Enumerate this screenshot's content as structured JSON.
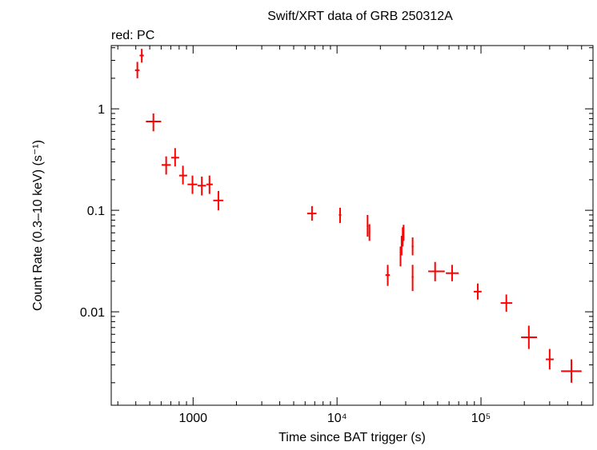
{
  "chart_data": {
    "type": "scatter",
    "title": "Swift/XRT data of GRB 250312A",
    "subtitle": "red: PC",
    "xlabel": "Time since BAT trigger (s)",
    "ylabel": "Count Rate (0.3–10 keV) (s⁻¹)",
    "xscale": "log",
    "yscale": "log",
    "xlim": [
      270,
      600000
    ],
    "ylim": [
      0.0012,
      4.2
    ],
    "x_ticks": [
      {
        "value": 1000,
        "label": "1000"
      },
      {
        "value": 10000,
        "label": "10⁴"
      },
      {
        "value": 100000,
        "label": "10⁵"
      }
    ],
    "y_ticks": [
      {
        "value": 1,
        "label": "1"
      },
      {
        "value": 0.1,
        "label": "0.1"
      },
      {
        "value": 0.01,
        "label": "0.01"
      }
    ],
    "grid": false,
    "series_color": "#ff0000",
    "points": [
      {
        "x": 410,
        "xlo": 395,
        "xhi": 425,
        "y": 2.4,
        "ylo": 2.0,
        "yhi": 2.9
      },
      {
        "x": 440,
        "xlo": 425,
        "xhi": 455,
        "y": 3.35,
        "ylo": 2.85,
        "yhi": 3.9
      },
      {
        "x": 530,
        "xlo": 470,
        "xhi": 600,
        "y": 0.75,
        "ylo": 0.6,
        "yhi": 0.9
      },
      {
        "x": 650,
        "xlo": 605,
        "xhi": 700,
        "y": 0.28,
        "ylo": 0.225,
        "yhi": 0.34
      },
      {
        "x": 750,
        "xlo": 705,
        "xhi": 800,
        "y": 0.33,
        "ylo": 0.27,
        "yhi": 0.41
      },
      {
        "x": 850,
        "xlo": 800,
        "xhi": 910,
        "y": 0.22,
        "ylo": 0.18,
        "yhi": 0.275
      },
      {
        "x": 990,
        "xlo": 915,
        "xhi": 1070,
        "y": 0.18,
        "ylo": 0.145,
        "yhi": 0.22
      },
      {
        "x": 1150,
        "xlo": 1075,
        "xhi": 1230,
        "y": 0.175,
        "ylo": 0.14,
        "yhi": 0.215
      },
      {
        "x": 1300,
        "xlo": 1235,
        "xhi": 1370,
        "y": 0.18,
        "ylo": 0.145,
        "yhi": 0.22
      },
      {
        "x": 1500,
        "xlo": 1380,
        "xhi": 1620,
        "y": 0.125,
        "ylo": 0.1,
        "yhi": 0.155
      },
      {
        "x": 6700,
        "xlo": 6200,
        "xhi": 7200,
        "y": 0.093,
        "ylo": 0.079,
        "yhi": 0.11
      },
      {
        "x": 10500,
        "xlo": 10300,
        "xhi": 10700,
        "y": 0.09,
        "ylo": 0.075,
        "yhi": 0.106
      },
      {
        "x": 16300,
        "xlo": 16100,
        "xhi": 16500,
        "y": 0.07,
        "ylo": 0.055,
        "yhi": 0.09
      },
      {
        "x": 16800,
        "xlo": 16600,
        "xhi": 17000,
        "y": 0.06,
        "ylo": 0.05,
        "yhi": 0.073
      },
      {
        "x": 22500,
        "xlo": 21700,
        "xhi": 23300,
        "y": 0.023,
        "ylo": 0.018,
        "yhi": 0.029
      },
      {
        "x": 27600,
        "xlo": 27400,
        "xhi": 27800,
        "y": 0.035,
        "ylo": 0.028,
        "yhi": 0.044
      },
      {
        "x": 28100,
        "xlo": 27900,
        "xhi": 28300,
        "y": 0.045,
        "ylo": 0.036,
        "yhi": 0.056
      },
      {
        "x": 28600,
        "xlo": 28400,
        "xhi": 28800,
        "y": 0.055,
        "ylo": 0.044,
        "yhi": 0.068
      },
      {
        "x": 29000,
        "xlo": 28800,
        "xhi": 29200,
        "y": 0.06,
        "ylo": 0.05,
        "yhi": 0.072
      },
      {
        "x": 33500,
        "xlo": 33000,
        "xhi": 34000,
        "y": 0.044,
        "ylo": 0.036,
        "yhi": 0.054
      },
      {
        "x": 33500,
        "xlo": 33000,
        "xhi": 34000,
        "y": 0.022,
        "ylo": 0.016,
        "yhi": 0.029
      },
      {
        "x": 48000,
        "xlo": 43000,
        "xhi": 56000,
        "y": 0.025,
        "ylo": 0.02,
        "yhi": 0.031
      },
      {
        "x": 63000,
        "xlo": 57000,
        "xhi": 70000,
        "y": 0.024,
        "ylo": 0.02,
        "yhi": 0.029
      },
      {
        "x": 95000,
        "xlo": 89000,
        "xhi": 101000,
        "y": 0.0158,
        "ylo": 0.0132,
        "yhi": 0.019
      },
      {
        "x": 150000,
        "xlo": 137000,
        "xhi": 165000,
        "y": 0.0122,
        "ylo": 0.01,
        "yhi": 0.0148
      },
      {
        "x": 215000,
        "xlo": 190000,
        "xhi": 245000,
        "y": 0.0056,
        "ylo": 0.0043,
        "yhi": 0.0073
      },
      {
        "x": 300000,
        "xlo": 282000,
        "xhi": 320000,
        "y": 0.0034,
        "ylo": 0.0027,
        "yhi": 0.0043
      },
      {
        "x": 425000,
        "xlo": 360000,
        "xhi": 500000,
        "y": 0.0026,
        "ylo": 0.002,
        "yhi": 0.0034
      }
    ]
  }
}
